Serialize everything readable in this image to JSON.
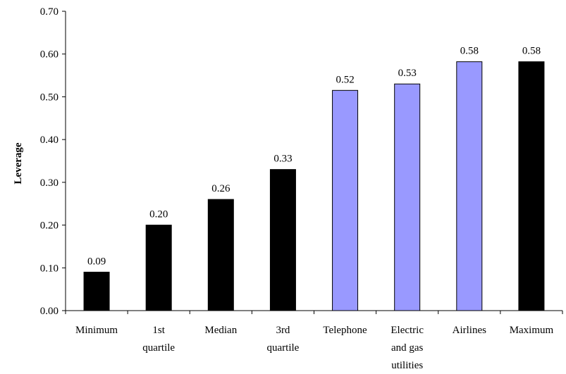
{
  "chart_data": {
    "type": "bar",
    "title": "",
    "xlabel": "",
    "ylabel": "Leverage",
    "ylim": [
      0,
      0.7
    ],
    "yticks": [
      "0.00",
      "0.10",
      "0.20",
      "0.30",
      "0.40",
      "0.50",
      "0.60",
      "0.70"
    ],
    "grid": false,
    "legend": "none",
    "categories": [
      [
        "Minimum"
      ],
      [
        "1st",
        "quartile"
      ],
      [
        "Median"
      ],
      [
        "3rd",
        "quartile"
      ],
      [
        "Telephone"
      ],
      [
        "Electric",
        "and gas",
        "utilities"
      ],
      [
        "Airlines"
      ],
      [
        "Maximum"
      ]
    ],
    "values": [
      0.09,
      0.2,
      0.26,
      0.33,
      0.515,
      0.53,
      0.582,
      0.582
    ],
    "data_labels": [
      "0.09",
      "0.20",
      "0.26",
      "0.33",
      "0.52",
      "0.53",
      "0.58",
      "0.58"
    ],
    "colors": [
      "#000000",
      "#000000",
      "#000000",
      "#000000",
      "#9999ff",
      "#9999ff",
      "#9999ff",
      "#000000"
    ]
  }
}
